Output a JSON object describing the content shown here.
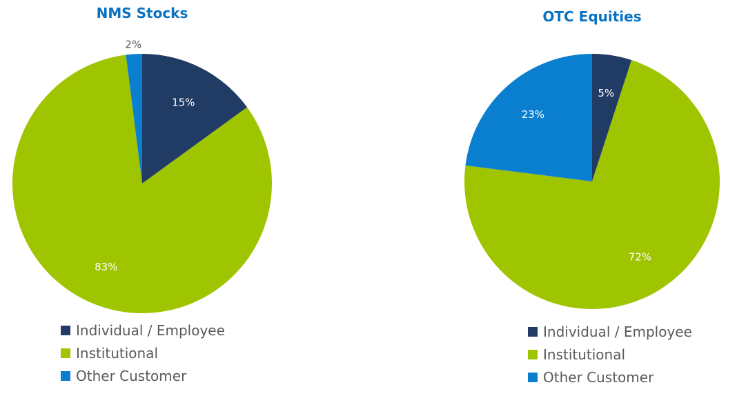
{
  "chart_data": [
    {
      "type": "pie",
      "title": "NMS Stocks",
      "categories": [
        "Individual / Employee",
        "Institutional",
        "Other Customer"
      ],
      "values": [
        15,
        83,
        2
      ],
      "labels": [
        "15%",
        "83%",
        "2%"
      ],
      "colors": [
        "#213c64",
        "#9fc400",
        "#0a7fcf"
      ],
      "legend_position": "bottom-left"
    },
    {
      "type": "pie",
      "title": "OTC Equities",
      "categories": [
        "Individual / Employee",
        "Institutional",
        "Other Customer"
      ],
      "values": [
        5,
        72,
        23
      ],
      "labels": [
        "5%",
        "72%",
        "23%"
      ],
      "colors": [
        "#213c64",
        "#9fc400",
        "#0a7fcf"
      ],
      "legend_position": "bottom-left"
    }
  ]
}
